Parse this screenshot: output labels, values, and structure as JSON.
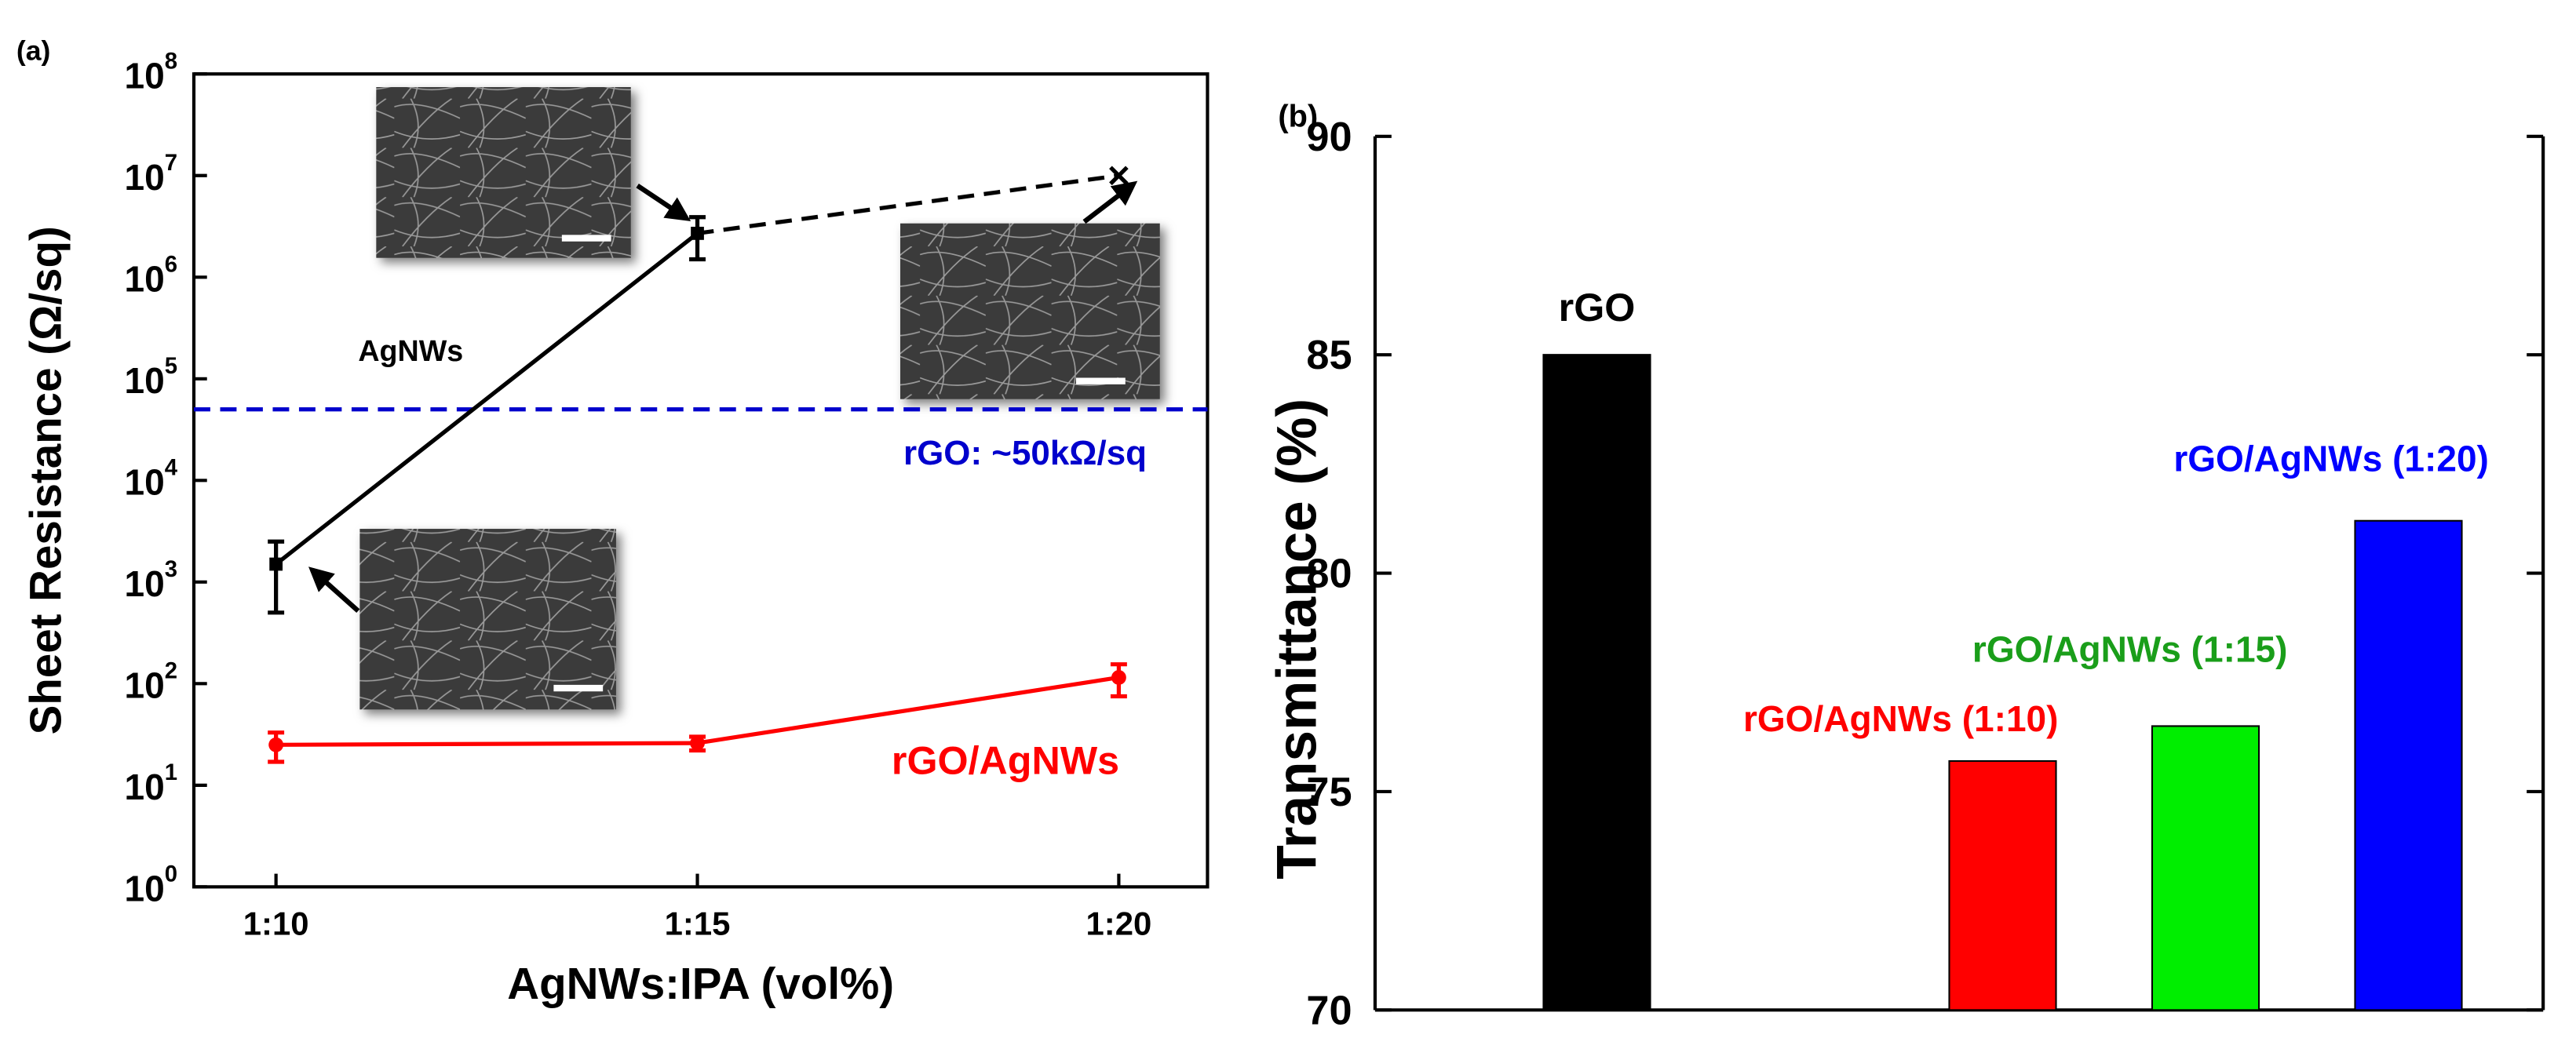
{
  "chart_data": [
    {
      "type": "line",
      "panel_label": "(a)",
      "x_label": "AgNWs:IPA (vol%)",
      "y_label": "Sheet Resistance (Ω/sq)",
      "categories": [
        "1:10",
        "1:15",
        "1:20"
      ],
      "log_y": true,
      "ylim": [
        1,
        100000000
      ],
      "yticks": [
        {
          "value": 1,
          "label": "10",
          "exponent": "0"
        },
        {
          "value": 10,
          "label": "10",
          "exponent": "1"
        },
        {
          "value": 100,
          "label": "10",
          "exponent": "2"
        },
        {
          "value": 1000,
          "label": "10",
          "exponent": "3"
        },
        {
          "value": 10000,
          "label": "10",
          "exponent": "4"
        },
        {
          "value": 100000,
          "label": "10",
          "exponent": "5"
        },
        {
          "value": 1000000,
          "label": "10",
          "exponent": "6"
        },
        {
          "value": 10000000,
          "label": "10",
          "exponent": "7"
        },
        {
          "value": 100000000,
          "label": "10",
          "exponent": "8"
        }
      ],
      "series": [
        {
          "name": "AgNWs",
          "color": "#000000",
          "values": [
            1500,
            2700000,
            10000000
          ],
          "errors": [
            1000,
            1200000,
            null
          ],
          "markers": [
            "square",
            "square",
            "x"
          ],
          "segment_styles": [
            "solid",
            "dashed"
          ]
        },
        {
          "name": "rGO/AgNWs",
          "color": "#ff0000",
          "values": [
            25,
            26,
            115
          ],
          "errors": [
            8,
            4,
            40
          ],
          "markers": [
            "circle",
            "circle",
            "circle"
          ],
          "segment_styles": [
            "solid",
            "solid"
          ]
        }
      ],
      "reference_line": {
        "value": 50000,
        "label": "rGO: ~50kΩ/sq",
        "color": "#0000cc",
        "style": "dashed"
      }
    },
    {
      "type": "bar",
      "panel_label": "(b)",
      "y_label": "Transmittance (%)",
      "categories": [
        "rGO",
        null,
        "rGO/AgNWs (1:10)",
        "rGO/AgNWs (1:15)",
        "rGO/AgNWs (1:20)"
      ],
      "values": [
        85,
        null,
        75.7,
        76.5,
        81.2
      ],
      "colors": [
        "#000000",
        null,
        "#ff0000",
        "#00ee00",
        "#0000ff"
      ],
      "label_colors": [
        "#000000",
        null,
        "#ff0000",
        "#1a9e1a",
        "#0000ff"
      ],
      "ylim": [
        70,
        90
      ],
      "yticks": [
        70,
        75,
        80,
        85,
        90
      ]
    }
  ]
}
